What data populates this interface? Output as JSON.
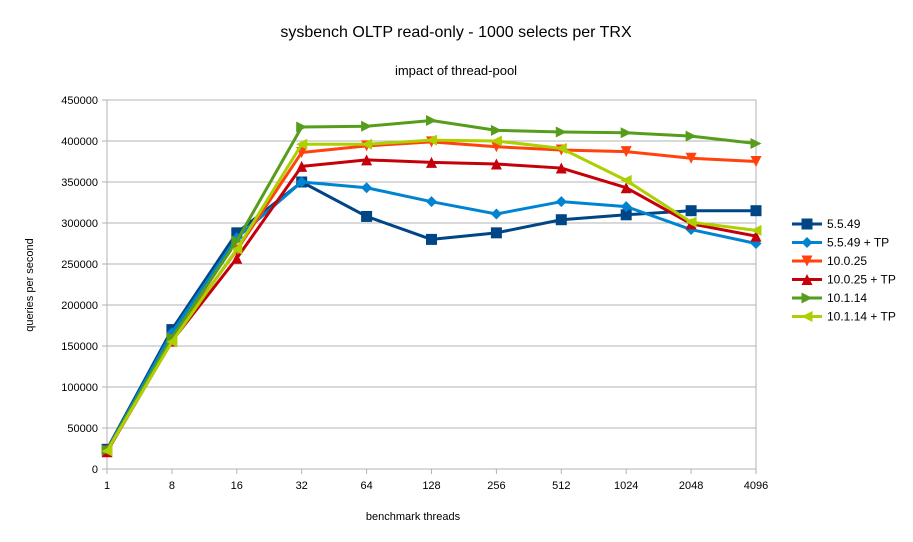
{
  "chart_data": {
    "type": "line",
    "title": "sysbench OLTP read-only - 1000 selects per TRX",
    "subtitle": "impact of thread-pool",
    "xlabel": "benchmark threads",
    "ylabel": "queries per second",
    "categories": [
      "1",
      "8",
      "16",
      "32",
      "64",
      "128",
      "256",
      "512",
      "1024",
      "2048",
      "4096"
    ],
    "ylim": [
      0,
      450000
    ],
    "yticks": [
      0,
      50000,
      100000,
      150000,
      200000,
      250000,
      300000,
      350000,
      400000,
      450000
    ],
    "ytick_labels": [
      "0",
      "50000",
      "100000",
      "150000",
      "200000",
      "250000",
      "300000",
      "350000",
      "400000",
      "450000"
    ],
    "grid": true,
    "legend_position": "right",
    "series": [
      {
        "name": "5.5.49",
        "color": "#004586",
        "marker": "square",
        "values": [
          24000,
          170000,
          288000,
          350000,
          308000,
          280000,
          288000,
          304000,
          310000,
          315000,
          315000
        ]
      },
      {
        "name": "5.5.49 + TP",
        "color": "#0084d1",
        "marker": "diamond",
        "values": [
          23000,
          166000,
          282000,
          350000,
          343000,
          326000,
          311000,
          326000,
          320000,
          292000,
          275000
        ]
      },
      {
        "name": "10.0.25",
        "color": "#ff420e",
        "marker": "triangle-down",
        "values": [
          22000,
          158000,
          267000,
          386000,
          394000,
          399000,
          393000,
          389000,
          387000,
          379000,
          375000
        ]
      },
      {
        "name": "10.0.25 + TP",
        "color": "#c5000b",
        "marker": "triangle-up",
        "values": [
          21000,
          156000,
          257000,
          369000,
          377000,
          374000,
          372000,
          367000,
          343000,
          299000,
          284000
        ]
      },
      {
        "name": "10.1.14",
        "color": "#579d1c",
        "marker": "triangle-right",
        "values": [
          23000,
          160000,
          278000,
          417000,
          418000,
          425000,
          413000,
          411000,
          410000,
          406000,
          397000
        ]
      },
      {
        "name": "10.1.14 + TP",
        "color": "#aecf00",
        "marker": "triangle-left",
        "values": [
          22000,
          155000,
          268000,
          396000,
          396000,
          401000,
          400000,
          391000,
          352000,
          301000,
          291000
        ]
      }
    ]
  }
}
